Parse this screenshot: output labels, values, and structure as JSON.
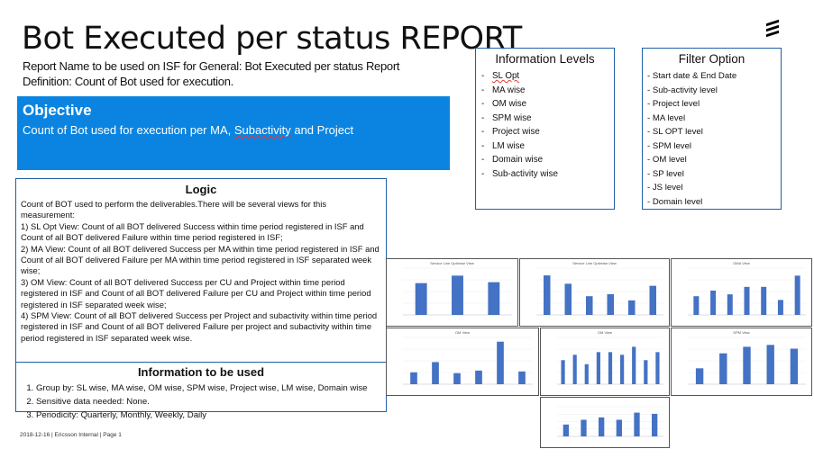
{
  "slide": {
    "title": "Bot Executed per status REPORT",
    "report_name": "Report Name to be used on ISF for General: Bot Executed per status Report",
    "definition": "Definition: Count of Bot used for execution."
  },
  "objective": {
    "heading": "Objective",
    "text_parts": [
      "Count of Bot used for execution per MA, ",
      "Subactivity",
      " and Project"
    ]
  },
  "logic": {
    "heading": "Logic",
    "intro": "Count of BOT used to perform the deliverables.There will be several views for this measurement:",
    "items": [
      "1) SL Opt View: Count of all BOT delivered Success within time period registered in ISF and Count of all BOT delivered Failure within time period registered in ISF;",
      "2) MA View: Count of all BOT delivered Success per MA within time period registered in ISF and Count of all BOT delivered Failure per MA within time period registered in ISF separated week wise;",
      "3) OM View: Count of all BOT delivered Success per CU and Project within time period registered in ISF and Count of all BOT delivered Failure per CU and Project within time period registered in ISF separated week wise;",
      "4) SPM View: Count of all BOT delivered Success per Project and subactivity within time period registered in ISF and Count of all BOT delivered Failure per project and subactivity within time period registered in ISF separated week wise."
    ]
  },
  "information_used": {
    "heading": "Information to be used",
    "items": [
      "Group by: SL wise, MA wise, OM wise, SPM wise, Project wise, LM wise, Domain wise",
      "Sensitive data needed: None.",
      "Periodicity: Quarterly, Monthly, Weekly, Daily"
    ]
  },
  "information_levels": {
    "heading": "Information Levels",
    "items": [
      "SL Opt",
      "MA wise",
      "OM wise",
      "SPM wise",
      "Project wise",
      "LM wise",
      "Domain wise",
      "Sub-activity wise"
    ]
  },
  "filter_option": {
    "heading": "Filter Option",
    "items": [
      "- Start date & End Date",
      "- Sub-activity level",
      "- Project level",
      "- MA level",
      "- SL OPT level",
      "- SPM level",
      "- OM level",
      "- SP level",
      "- JS level",
      "- Domain level"
    ]
  },
  "footer": "2018-12-16  |  Ericsson Internal  |  Page 1",
  "colors": {
    "accent": "#0a84e0",
    "bar": "#4472c4",
    "border": "#1f5fa8"
  },
  "chart_data": [
    {
      "type": "bar",
      "title": "Service Line Optimise View",
      "categories": [
        "",
        "",
        ""
      ],
      "values": [
        34,
        42,
        35
      ],
      "ylim": [
        0,
        50
      ]
    },
    {
      "type": "bar",
      "title": "Service Line Optimise View",
      "categories": [
        "",
        "",
        "",
        "",
        "",
        ""
      ],
      "values": [
        38,
        30,
        18,
        20,
        14,
        28
      ],
      "ylim": [
        0,
        45
      ]
    },
    {
      "type": "bar",
      "title": "OMA View",
      "categories": [
        "",
        "",
        "",
        "",
        "",
        "",
        ""
      ],
      "values": [
        20,
        26,
        22,
        30,
        30,
        16,
        42
      ],
      "ylim": [
        0,
        50
      ]
    },
    {
      "type": "bar",
      "title": "OM View",
      "categories": [
        "",
        "",
        "",
        "",
        "",
        ""
      ],
      "values": [
        14,
        26,
        13,
        16,
        50,
        15
      ],
      "ylim": [
        0,
        55
      ]
    },
    {
      "type": "bar",
      "title": "OM View",
      "categories": [
        "",
        "",
        "",
        "",
        "",
        "",
        "",
        "",
        ""
      ],
      "values": [
        18,
        22,
        15,
        24,
        24,
        22,
        28,
        18,
        24
      ],
      "ylim": [
        0,
        35
      ]
    },
    {
      "type": "bar",
      "title": "SPM View",
      "categories": [
        "",
        "",
        "",
        "",
        ""
      ],
      "values": [
        17,
        33,
        40,
        42,
        38
      ],
      "ylim": [
        0,
        50
      ]
    },
    {
      "type": "bar",
      "title": "",
      "categories": [
        "",
        "",
        "",
        "",
        "",
        ""
      ],
      "values": [
        10,
        14,
        16,
        14,
        20,
        19
      ],
      "ylim": [
        0,
        25
      ]
    }
  ]
}
